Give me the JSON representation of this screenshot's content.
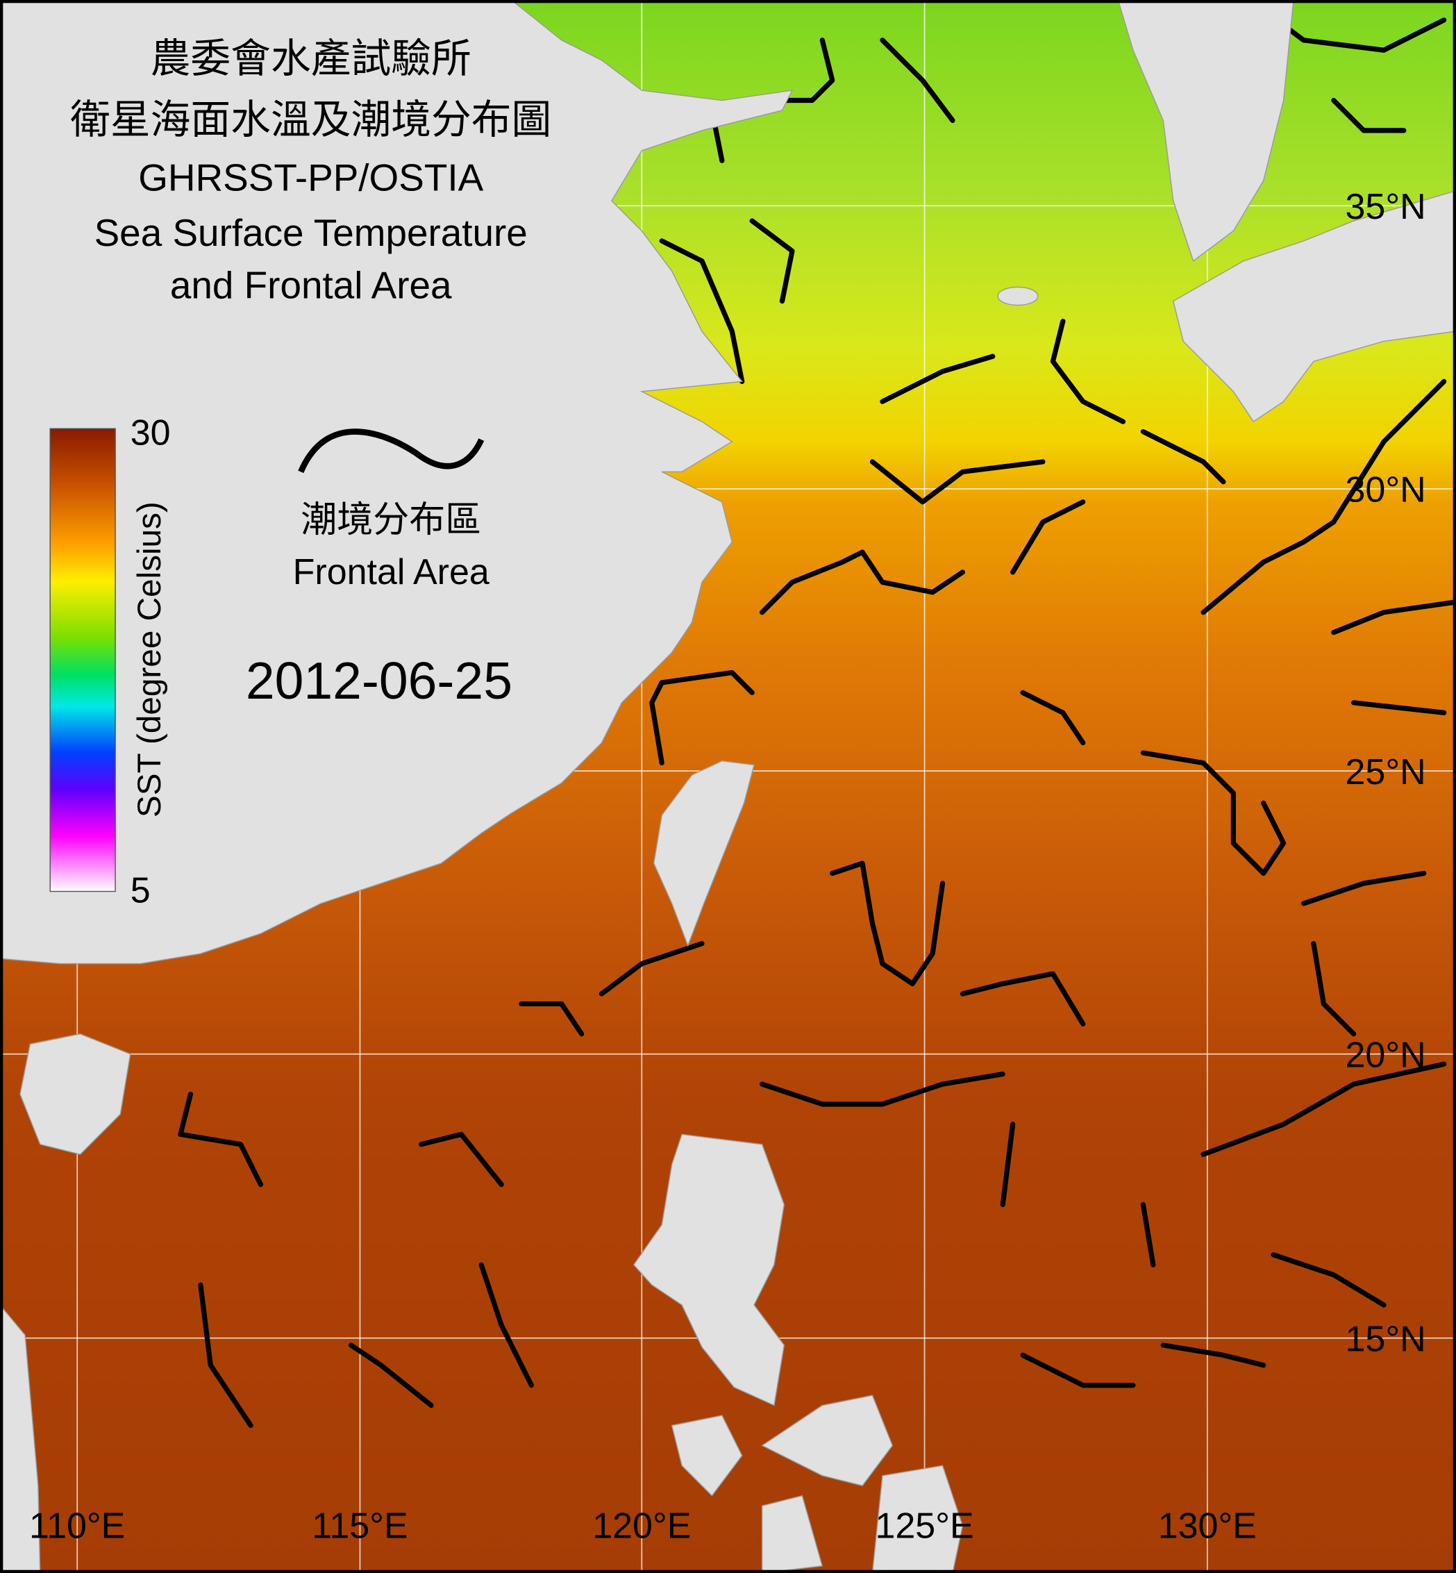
{
  "title": [
    "農委會水產試驗所",
    "衛星海面水溫及潮境分布圖",
    "GHRSST-PP/OSTIA",
    "Sea Surface Temperature",
    "and Frontal Area"
  ],
  "colorbar": {
    "label": "SST (degree Celsius)",
    "max": 30,
    "min": 5
  },
  "legend": {
    "label_zh": "潮境分布區",
    "label_en": "Frontal Area"
  },
  "date": "2012-06-25",
  "lat_labels": [
    "35°N",
    "30°N",
    "25°N",
    "20°N",
    "15°N"
  ],
  "lon_labels": [
    "110°E",
    "115°E",
    "120°E",
    "125°E",
    "130°E"
  ]
}
